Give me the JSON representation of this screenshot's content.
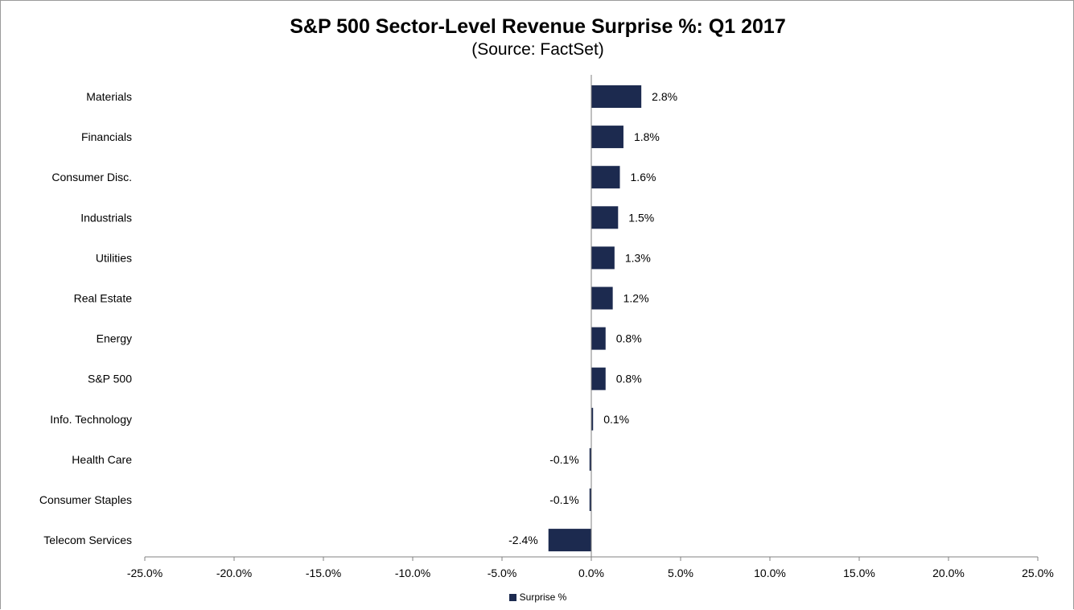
{
  "colors": {
    "bar": "#1c2a4f",
    "axis": "#808080",
    "frame": "#9a9a9a"
  },
  "chart_data": {
    "type": "bar",
    "orientation": "horizontal",
    "title": "S&P 500 Sector-Level Revenue Surprise %: Q1 2017",
    "subtitle": "(Source: FactSet)",
    "categories": [
      "Materials",
      "Financials",
      "Consumer Disc.",
      "Industrials",
      "Utilities",
      "Real Estate",
      "Energy",
      "S&P 500",
      "Info. Technology",
      "Health Care",
      "Consumer Staples",
      "Telecom Services"
    ],
    "series": [
      {
        "name": "Surprise %",
        "values": [
          2.8,
          1.8,
          1.6,
          1.5,
          1.3,
          1.2,
          0.8,
          0.8,
          0.1,
          -0.1,
          -0.1,
          -2.4
        ],
        "labels": [
          "2.8%",
          "1.8%",
          "1.6%",
          "1.5%",
          "1.3%",
          "1.2%",
          "0.8%",
          "0.8%",
          "0.1%",
          "-0.1%",
          "-0.1%",
          "-2.4%"
        ]
      }
    ],
    "xlim": [
      -25,
      25
    ],
    "ticks": [
      -25,
      -20,
      -15,
      -10,
      -5,
      0,
      5,
      10,
      15,
      20,
      25
    ],
    "tick_labels": [
      "-25.0%",
      "-20.0%",
      "-15.0%",
      "-10.0%",
      "-5.0%",
      "0.0%",
      "5.0%",
      "10.0%",
      "15.0%",
      "20.0%",
      "25.0%"
    ],
    "xlabel": "",
    "ylabel": "",
    "grid": false,
    "legend": {
      "position": "bottom",
      "label": "Surprise %"
    }
  }
}
